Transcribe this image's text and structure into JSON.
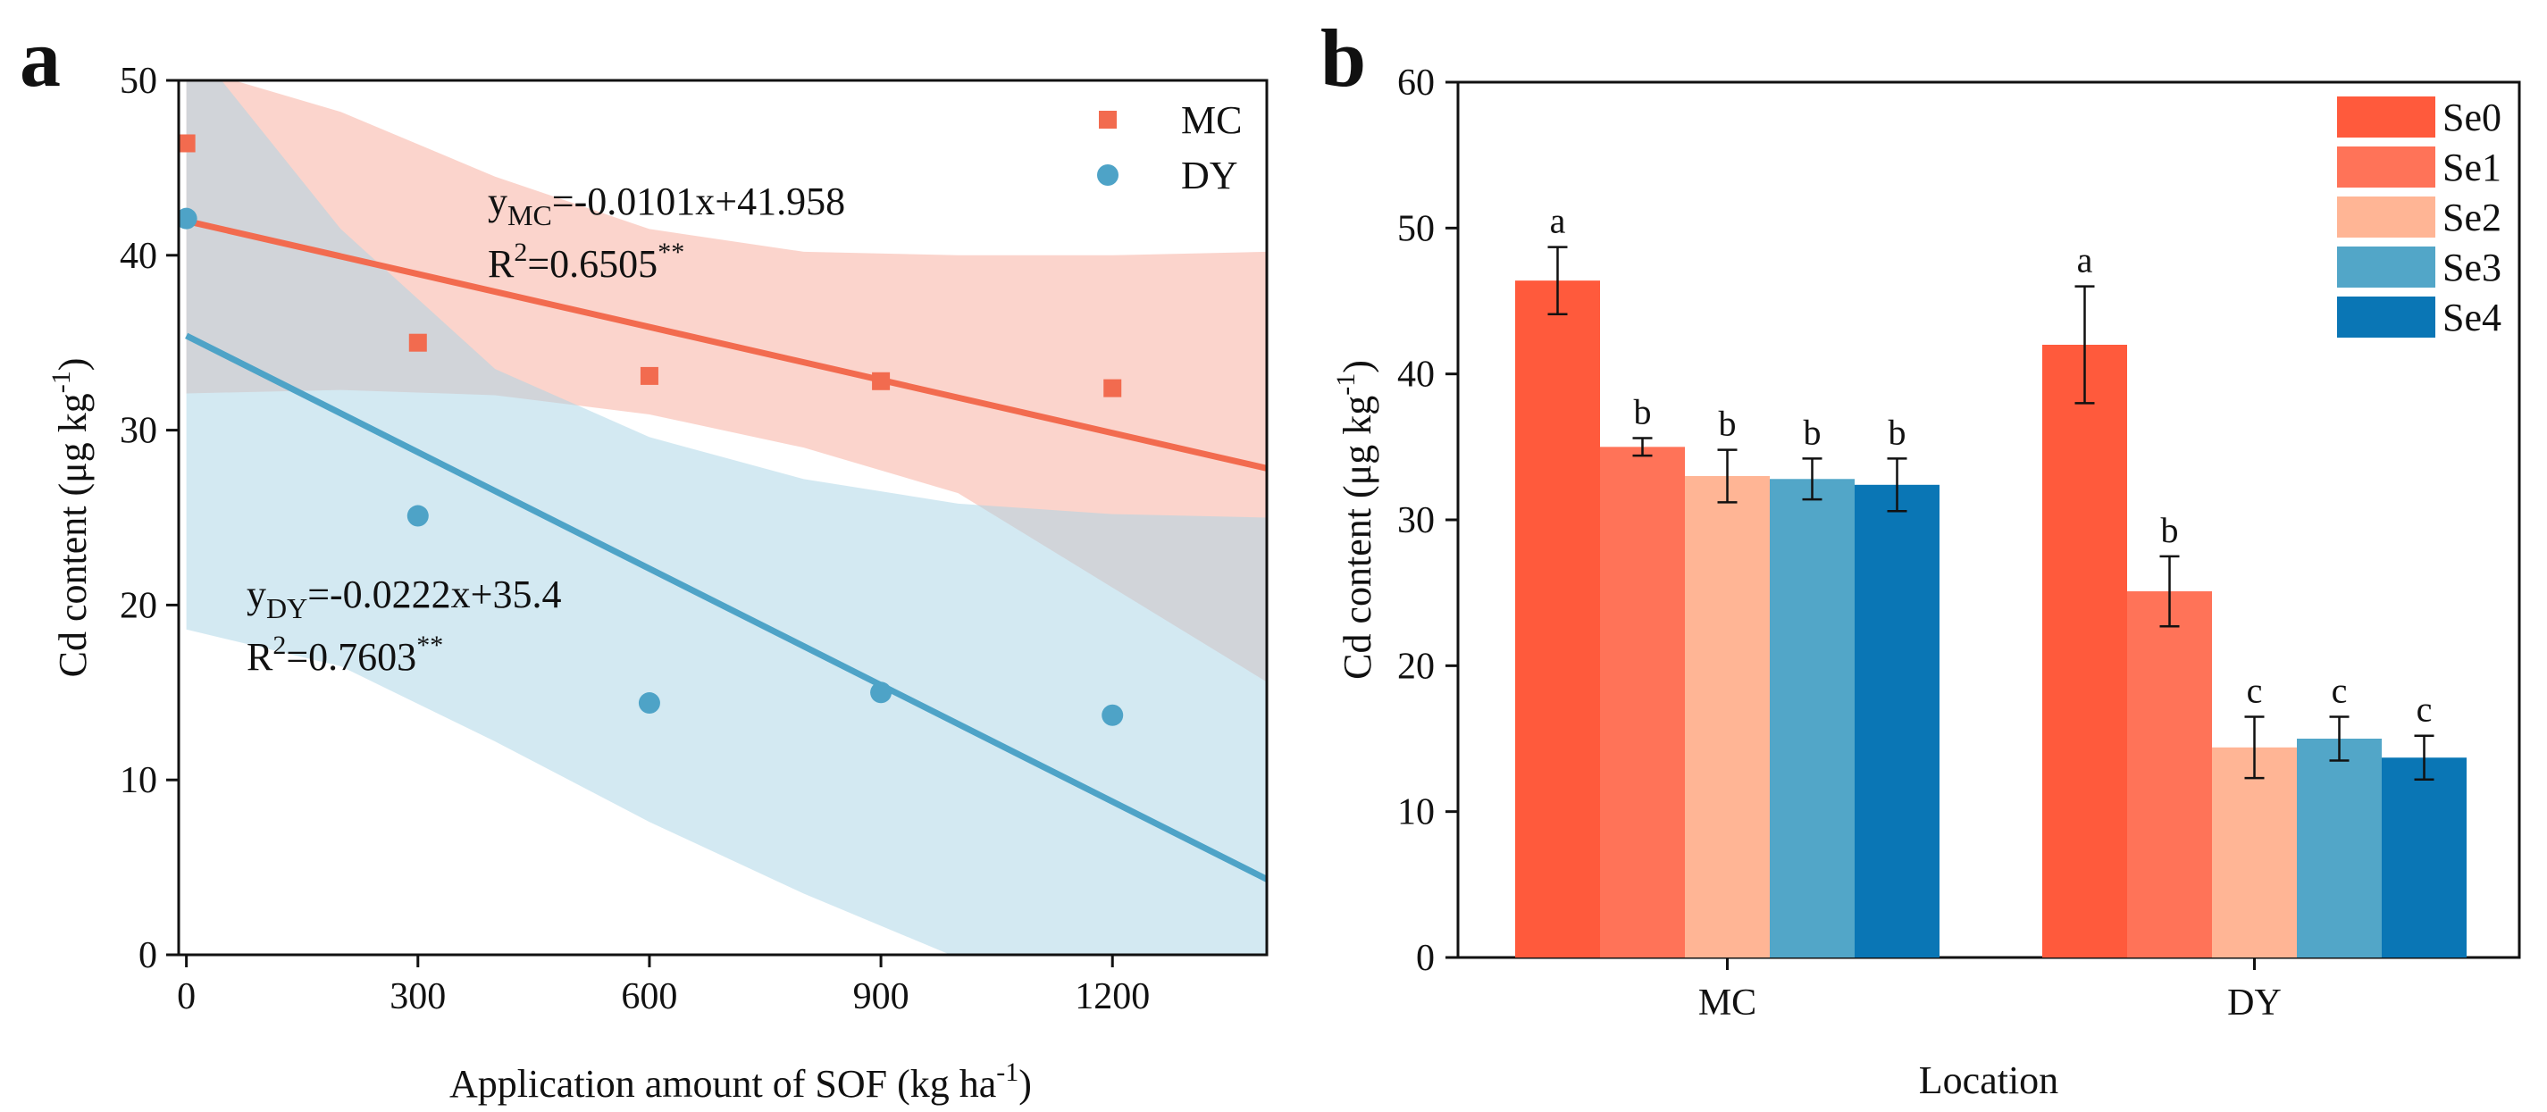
{
  "chart_data": [
    {
      "panel": "a",
      "type": "scatter",
      "xlabel": "Application amount of SOF (kg ha",
      "xlabel_sup": "-1",
      "xlabel_end": ")",
      "ylabel": "Cd content (μg kg",
      "ylabel_sup": "-1",
      "ylabel_end": ")",
      "xlim": [
        -10,
        1400
      ],
      "ylim": [
        0,
        50
      ],
      "xticks": [
        "0",
        "300",
        "600",
        "900",
        "1200"
      ],
      "xtick_values": [
        0,
        300,
        600,
        900,
        1200
      ],
      "yticks": [
        "0",
        "10",
        "20",
        "30",
        "40",
        "50"
      ],
      "ytick_values": [
        0,
        10,
        20,
        30,
        40,
        50
      ],
      "legend_position": "top-right",
      "series": [
        {
          "name": "MC",
          "marker": "square",
          "color": "#f26b4f",
          "band_color": "#f7a99a",
          "x": [
            0,
            300,
            600,
            900,
            1200
          ],
          "y": [
            46.4,
            35.0,
            33.1,
            32.8,
            32.4
          ],
          "fit": {
            "slope": -0.0101,
            "intercept": 41.958
          },
          "band_upper": [
            [
              0,
              50.8
            ],
            [
              200,
              48.2
            ],
            [
              400,
              44.5
            ],
            [
              600,
              41.5
            ],
            [
              800,
              40.2
            ],
            [
              1000,
              40.0
            ],
            [
              1200,
              40.0
            ],
            [
              1400,
              40.2
            ]
          ],
          "band_lower": [
            [
              0,
              32.1
            ],
            [
              200,
              32.3
            ],
            [
              400,
              32.0
            ],
            [
              600,
              30.9
            ],
            [
              800,
              29.0
            ],
            [
              1000,
              26.4
            ],
            [
              1200,
              21.0
            ],
            [
              1400,
              15.6
            ]
          ],
          "equation": {
            "y": "y",
            "sub": "MC",
            "rest": "=-0.0101x+41.958"
          },
          "r2": {
            "r": "R",
            "sup": "2",
            "rest": "=0.6505",
            "sig": "**"
          }
        },
        {
          "name": "DY",
          "marker": "circle",
          "color": "#4ea3c7",
          "band_color": "#a8d3e6",
          "x": [
            0,
            300,
            600,
            900,
            1200
          ],
          "y": [
            42.1,
            25.1,
            14.4,
            15.0,
            13.7
          ],
          "fit": {
            "slope": -0.0222,
            "intercept": 35.4
          },
          "band_upper": [
            [
              0,
              52.5
            ],
            [
              200,
              41.5
            ],
            [
              400,
              33.5
            ],
            [
              600,
              29.6
            ],
            [
              800,
              27.2
            ],
            [
              1000,
              25.8
            ],
            [
              1200,
              25.2
            ],
            [
              1400,
              25.0
            ]
          ],
          "band_lower": [
            [
              0,
              18.6
            ],
            [
              200,
              16.5
            ],
            [
              400,
              12.2
            ],
            [
              600,
              7.6
            ],
            [
              800,
              3.5
            ],
            [
              990,
              0
            ]
          ],
          "equation": {
            "y": "y",
            "sub": "DY",
            "rest": "=-0.0222x+35.4"
          },
          "r2": {
            "r": "R",
            "sup": "2",
            "rest": "=0.7603",
            "sig": "**"
          }
        }
      ]
    },
    {
      "panel": "b",
      "type": "bar",
      "xlabel": "Location",
      "ylabel": "Cd content (μg kg",
      "ylabel_sup": "-1",
      "ylabel_end": ")",
      "categories": [
        "MC",
        "DY"
      ],
      "ylim": [
        0,
        60
      ],
      "yticks": [
        "0",
        "10",
        "20",
        "30",
        "40",
        "50",
        "60"
      ],
      "ytick_values": [
        0,
        10,
        20,
        30,
        40,
        50,
        60
      ],
      "legend_position": "top-right",
      "series": [
        {
          "name": "Se0",
          "color": "#ff5a3c",
          "values": [
            46.4,
            42.0
          ],
          "errors": [
            2.3,
            4.0
          ],
          "letters": [
            "a",
            "a"
          ]
        },
        {
          "name": "Se1",
          "color": "#ff7358",
          "values": [
            35.0,
            25.1
          ],
          "errors": [
            0.6,
            2.4
          ],
          "letters": [
            "b",
            "b"
          ]
        },
        {
          "name": "Se2",
          "color": "#ffb595",
          "values": [
            33.0,
            14.4
          ],
          "errors": [
            1.8,
            2.1
          ],
          "letters": [
            "b",
            "c"
          ]
        },
        {
          "name": "Se3",
          "color": "#52a6c8",
          "values": [
            32.8,
            15.0
          ],
          "errors": [
            1.4,
            1.5
          ],
          "letters": [
            "b",
            "c"
          ]
        },
        {
          "name": "Se4",
          "color": "#0a76b5",
          "values": [
            32.4,
            13.7
          ],
          "errors": [
            1.8,
            1.5
          ],
          "letters": [
            "b",
            "c"
          ]
        }
      ]
    }
  ]
}
